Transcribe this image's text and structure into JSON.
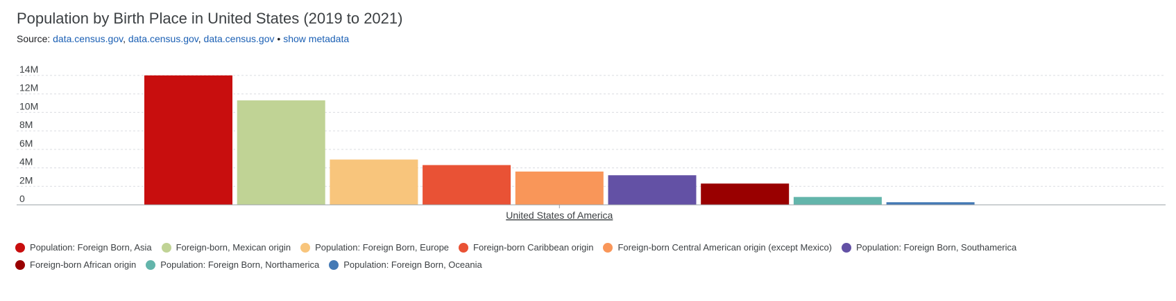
{
  "title": "Population by Birth Place in United States (2019 to 2021)",
  "source": {
    "prefix": "Source:",
    "links": [
      "data.census.gov",
      "data.census.gov",
      "data.census.gov"
    ],
    "separator": "•",
    "metadata_link": "show metadata"
  },
  "chart_data": {
    "type": "bar",
    "categories": [
      "United States of America"
    ],
    "ylim": [
      0,
      14000000
    ],
    "yticks": [
      {
        "value": 0,
        "label": "0"
      },
      {
        "value": 2000000,
        "label": "2M"
      },
      {
        "value": 4000000,
        "label": "4M"
      },
      {
        "value": 6000000,
        "label": "6M"
      },
      {
        "value": 8000000,
        "label": "8M"
      },
      {
        "value": 10000000,
        "label": "10M"
      },
      {
        "value": 12000000,
        "label": "12M"
      },
      {
        "value": 14000000,
        "label": "14M"
      }
    ],
    "grid": true,
    "legend_position": "bottom",
    "series": [
      {
        "name": "Population: Foreign Born, Asia",
        "color": "#c80e0e",
        "values": [
          14000000
        ]
      },
      {
        "name": "Foreign-born, Mexican origin",
        "color": "#c0d395",
        "values": [
          11300000
        ]
      },
      {
        "name": "Population: Foreign Born, Europe",
        "color": "#f8c57c",
        "values": [
          4900000
        ]
      },
      {
        "name": "Foreign-born Caribbean origin",
        "color": "#e95235",
        "values": [
          4300000
        ]
      },
      {
        "name": "Foreign-born Central American origin (except Mexico)",
        "color": "#f99659",
        "values": [
          3600000
        ]
      },
      {
        "name": "Population: Foreign Born, Southamerica",
        "color": "#6351a5",
        "values": [
          3200000
        ]
      },
      {
        "name": "Foreign-born African origin",
        "color": "#990000",
        "values": [
          2300000
        ]
      },
      {
        "name": "Population: Foreign Born, Northamerica",
        "color": "#63b5ab",
        "values": [
          850000
        ]
      },
      {
        "name": "Population: Foreign Born, Oceania",
        "color": "#4479b5",
        "values": [
          280000
        ]
      }
    ]
  }
}
